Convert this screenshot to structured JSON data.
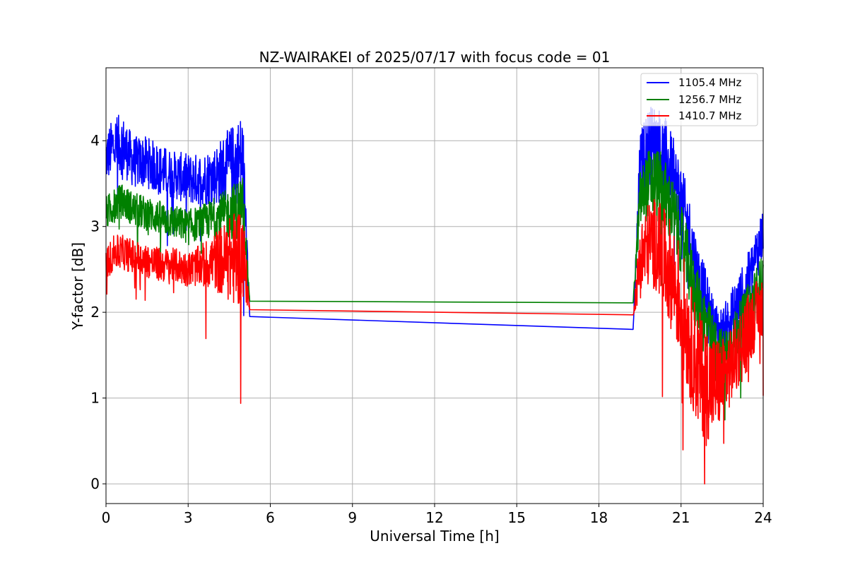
{
  "chart_data": {
    "type": "line",
    "title": "NZ-WAIRAKEI of 2025/07/17 with focus code = 01",
    "xlabel": "Universal Time [h]",
    "ylabel": "Y-factor [dB]",
    "xlim": [
      0,
      24
    ],
    "ylim": [
      -0.23,
      4.85
    ],
    "xticks": [
      0,
      3,
      6,
      9,
      12,
      15,
      18,
      21,
      24
    ],
    "yticks": [
      0,
      1,
      2,
      3,
      4
    ],
    "grid": true,
    "legend_position": "top-right",
    "series": [
      {
        "name": "1105.4 MHz",
        "color": "#0000ff",
        "x": [
          0.0,
          0.3,
          0.6,
          1.0,
          1.5,
          2.0,
          2.5,
          3.0,
          3.5,
          4.0,
          4.5,
          4.8,
          5.0,
          5.25,
          19.25,
          19.5,
          19.8,
          20.1,
          20.4,
          20.7,
          21.0,
          21.3,
          21.6,
          21.9,
          22.2,
          22.5,
          22.8,
          23.1,
          23.4,
          23.7,
          24.0
        ],
        "y": [
          3.8,
          3.95,
          3.95,
          3.75,
          3.75,
          3.65,
          3.6,
          3.55,
          3.55,
          3.6,
          3.7,
          3.75,
          3.8,
          1.95,
          1.8,
          3.7,
          3.95,
          3.95,
          3.8,
          3.6,
          3.3,
          2.9,
          2.4,
          2.1,
          1.8,
          1.7,
          1.9,
          2.1,
          2.3,
          2.6,
          2.95
        ],
        "spread": [
          0.3,
          0.35,
          0.35,
          0.3,
          0.3,
          0.3,
          0.28,
          0.3,
          0.3,
          0.35,
          0.45,
          0.5,
          0.55,
          0.0,
          0.0,
          0.4,
          0.45,
          0.5,
          0.5,
          0.45,
          0.45,
          0.45,
          0.45,
          0.4,
          0.35,
          0.35,
          0.35,
          0.35,
          0.35,
          0.35,
          0.3
        ]
      },
      {
        "name": "1256.7 MHz",
        "color": "#008000",
        "x": [
          0.0,
          0.3,
          0.6,
          1.0,
          1.5,
          2.0,
          2.5,
          3.0,
          3.5,
          4.0,
          4.5,
          4.8,
          5.0,
          5.25,
          19.25,
          19.5,
          19.8,
          20.1,
          20.4,
          20.7,
          21.0,
          21.3,
          21.6,
          21.9,
          22.2,
          22.5,
          22.8,
          23.1,
          23.4,
          23.7,
          24.0
        ],
        "y": [
          3.15,
          3.25,
          3.3,
          3.2,
          3.15,
          3.1,
          3.05,
          3.0,
          3.05,
          3.1,
          3.15,
          3.2,
          3.3,
          2.13,
          2.11,
          3.3,
          3.5,
          3.5,
          3.35,
          3.15,
          2.85,
          2.5,
          2.1,
          1.85,
          1.6,
          1.5,
          1.6,
          1.8,
          2.0,
          2.2,
          2.4
        ],
        "spread": [
          0.2,
          0.2,
          0.2,
          0.2,
          0.2,
          0.2,
          0.2,
          0.2,
          0.2,
          0.25,
          0.3,
          0.35,
          0.3,
          0.0,
          0.0,
          0.35,
          0.4,
          0.45,
          0.45,
          0.4,
          0.4,
          0.4,
          0.4,
          0.4,
          0.35,
          0.3,
          0.3,
          0.3,
          0.3,
          0.3,
          0.3
        ]
      },
      {
        "name": "1410.7 MHz",
        "color": "#ff0000",
        "x": [
          0.0,
          0.3,
          0.6,
          1.0,
          1.5,
          2.0,
          2.5,
          3.0,
          3.5,
          4.0,
          4.5,
          4.8,
          5.0,
          5.25,
          19.25,
          19.5,
          19.8,
          20.1,
          20.4,
          20.7,
          21.0,
          21.3,
          21.6,
          21.9,
          22.2,
          22.5,
          22.8,
          23.1,
          23.4,
          23.7,
          24.0
        ],
        "y": [
          2.55,
          2.7,
          2.7,
          2.65,
          2.6,
          2.55,
          2.55,
          2.5,
          2.55,
          2.6,
          2.6,
          2.65,
          2.7,
          2.03,
          1.97,
          2.6,
          2.8,
          2.8,
          2.6,
          2.4,
          2.1,
          1.7,
          1.35,
          1.2,
          1.15,
          1.2,
          1.35,
          1.55,
          1.75,
          1.95,
          2.1
        ],
        "spread": [
          0.2,
          0.2,
          0.2,
          0.2,
          0.2,
          0.2,
          0.2,
          0.2,
          0.25,
          0.35,
          0.5,
          0.6,
          0.55,
          0.0,
          0.0,
          0.45,
          0.5,
          0.55,
          0.6,
          0.65,
          0.7,
          0.7,
          0.7,
          0.7,
          0.6,
          0.5,
          0.45,
          0.45,
          0.45,
          0.4,
          0.35
        ]
      }
    ]
  }
}
